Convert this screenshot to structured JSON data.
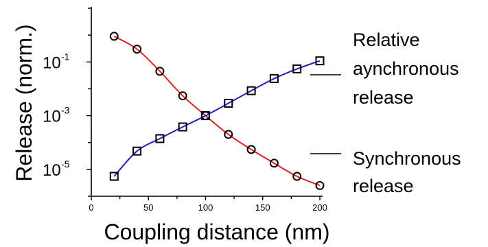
{
  "chart_data": {
    "type": "line",
    "title": "",
    "xlabel": "Coupling distance (nm)",
    "ylabel": "Release (norm.)",
    "y_scale": "log",
    "xlim": [
      0,
      200
    ],
    "ylim_exponent": [
      -6,
      1
    ],
    "x_ticks": [
      "0",
      "50",
      "100",
      "150",
      "200"
    ],
    "y_ticks": [
      {
        "base": "10",
        "exp": "-1",
        "value": 0.1
      },
      {
        "base": "10",
        "exp": "-3",
        "value": 0.001
      },
      {
        "base": "10",
        "exp": "-5",
        "value": 1e-05
      }
    ],
    "grid": false,
    "series": [
      {
        "name": "Synchronous release",
        "color": "#e02020",
        "marker": "circle",
        "x": [
          20,
          40,
          60,
          80,
          100,
          120,
          140,
          160,
          180,
          200
        ],
        "y": [
          0.9,
          0.3,
          0.045,
          0.0055,
          0.001,
          0.0002,
          5.5e-05,
          1.7e-05,
          5.5e-06,
          2.5e-06
        ]
      },
      {
        "name": "Relative aynchronous release",
        "color": "#2020c0",
        "marker": "square",
        "x": [
          20,
          40,
          60,
          80,
          100,
          120,
          140,
          160,
          180,
          200
        ],
        "y": [
          5.5e-06,
          4.8e-05,
          0.00014,
          0.00038,
          0.001,
          0.0029,
          0.0085,
          0.024,
          0.055,
          0.11
        ]
      }
    ],
    "annotations": [
      {
        "lines": [
          "Relative",
          "aynchronous",
          "release"
        ],
        "series": "Relative aynchronous release"
      },
      {
        "lines": [
          "Synchronous",
          "release"
        ],
        "series": "Synchronous release"
      }
    ]
  }
}
